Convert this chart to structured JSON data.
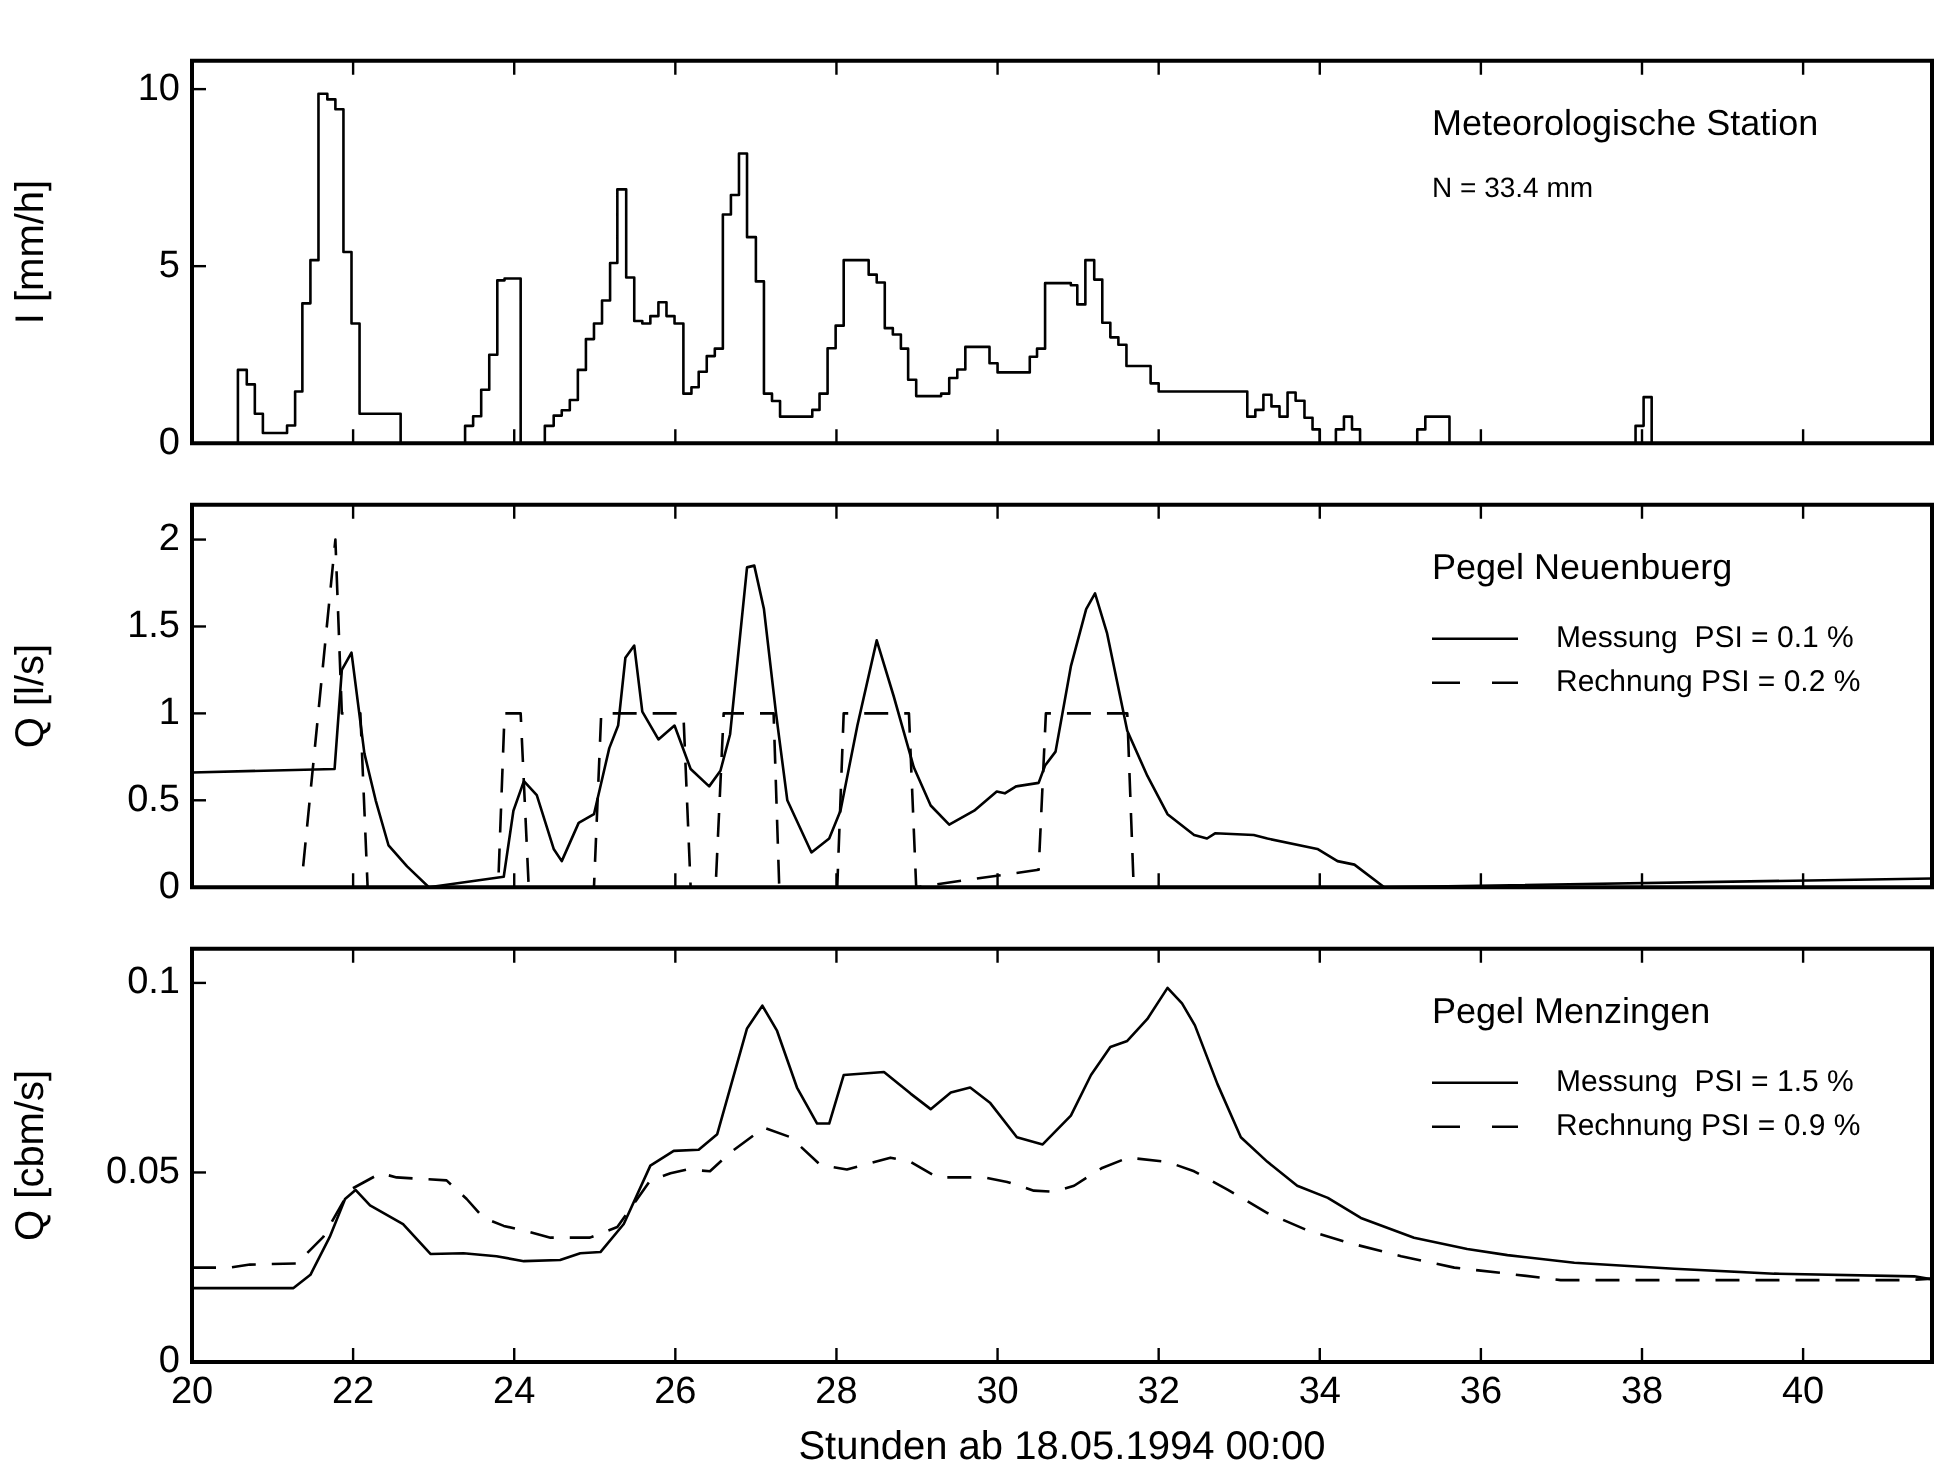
{
  "chart_data": [
    {
      "type": "step",
      "ylabel": "I [mm/h]",
      "annotations": [
        "Meteorologische Station",
        "N = 33.4 mm"
      ],
      "xlim": [
        20,
        41.6
      ],
      "xticks": [
        20,
        22,
        24,
        26,
        28,
        30,
        32,
        34,
        36,
        38,
        40
      ],
      "ylim": [
        0,
        10.8
      ],
      "yticks": [
        0,
        5,
        10
      ],
      "tick_labels": "y",
      "marker": "none",
      "series": [
        {
          "color": "#000000",
          "x": [
            20.57,
            20.57,
            20.68,
            20.78,
            20.88,
            21.18,
            21.28,
            21.37,
            21.47,
            21.57,
            21.68,
            21.78,
            21.88,
            21.98,
            22.08,
            22.59,
            23.39,
            23.49,
            23.59,
            23.69,
            23.79,
            23.88,
            24.08,
            24.38,
            24.49,
            24.59,
            24.69,
            24.79,
            24.89,
            24.99,
            25.09,
            25.19,
            25.28,
            25.39,
            25.49,
            25.59,
            25.69,
            25.79,
            25.89,
            25.99,
            26.1,
            26.2,
            26.29,
            26.39,
            26.49,
            26.59,
            26.69,
            26.79,
            26.89,
            27.0,
            27.1,
            27.2,
            27.3,
            27.7,
            27.79,
            27.89,
            27.99,
            28.09,
            28.4,
            28.5,
            28.6,
            28.7,
            28.8,
            28.89,
            28.99,
            29.3,
            29.4,
            29.5,
            29.6,
            29.9,
            30.0,
            30.4,
            30.49,
            30.59,
            30.91,
            30.99,
            31.09,
            31.2,
            31.3,
            31.4,
            31.5,
            31.6,
            31.9,
            32.0,
            33.1,
            33.2,
            33.3,
            33.4,
            33.5,
            33.6,
            33.7,
            33.81,
            33.91,
            34.0,
            34.2,
            34.3,
            34.4,
            34.5,
            35.21,
            35.31,
            35.61,
            37.92,
            38.02,
            38.12
          ],
          "values": [
            0,
            2.07,
            1.66,
            0.83,
            0.29,
            0.5,
            1.46,
            3.95,
            5.17,
            9.87,
            9.71,
            9.43,
            5.4,
            3.38,
            0.83,
            0,
            0.49,
            0.76,
            1.51,
            2.5,
            4.6,
            4.65,
            0,
            0.49,
            0.78,
            0.93,
            1.22,
            2.07,
            2.94,
            3.38,
            4.03,
            5.09,
            7.17,
            4.68,
            3.45,
            3.38,
            3.59,
            3.98,
            3.59,
            3.38,
            1.4,
            1.58,
            2.02,
            2.46,
            2.67,
            6.46,
            7.01,
            8.18,
            5.82,
            4.57,
            1.4,
            1.19,
            0.75,
            0.94,
            1.4,
            2.68,
            3.32,
            5.17,
            4.76,
            4.54,
            3.25,
            3.07,
            2.67,
            1.79,
            1.33,
            1.4,
            1.84,
            2.08,
            2.72,
            2.26,
            2.0,
            2.44,
            2.67,
            4.52,
            4.46,
            3.92,
            5.17,
            4.62,
            3.4,
            2.99,
            2.78,
            2.18,
            1.69,
            1.46,
            0.75,
            0.94,
            1.37,
            1.04,
            0.75,
            1.43,
            1.2,
            0.72,
            0.39,
            0,
            0.39,
            0.75,
            0.39,
            0,
            0.39,
            0.75,
            0,
            0.49,
            1.3,
            0
          ]
        }
      ]
    },
    {
      "type": "line",
      "ylabel": "Q [l/s]",
      "legend_title": "Pegel Neuenbuerg",
      "legend": "top right",
      "xlim": [
        20,
        41.6
      ],
      "xticks": [
        20,
        22,
        24,
        26,
        28,
        30,
        32,
        34,
        36,
        38,
        40
      ],
      "ylim": [
        0,
        2.2
      ],
      "yticks": [
        0,
        0.5,
        1,
        1.5,
        2
      ],
      "tick_labels": "y",
      "marker": "none",
      "series": [
        {
          "name": "Messung  PSI = 0.1 %",
          "color": "#000000",
          "line_style": "solid",
          "x": [
            20.0,
            21.77,
            21.86,
            21.98,
            22.14,
            22.28,
            22.44,
            22.67,
            22.94,
            23.87,
            23.99,
            24.12,
            24.28,
            24.49,
            24.59,
            24.8,
            24.99,
            25.18,
            25.29,
            25.38,
            25.49,
            25.59,
            25.79,
            25.99,
            26.19,
            26.42,
            26.56,
            26.68,
            26.89,
            26.98,
            27.1,
            27.25,
            27.39,
            27.69,
            27.91,
            28.05,
            28.26,
            28.5,
            28.71,
            28.96,
            29.17,
            29.4,
            29.71,
            29.99,
            30.09,
            30.23,
            30.51,
            30.59,
            30.72,
            30.91,
            31.1,
            31.21,
            31.36,
            31.61,
            31.86,
            32.11,
            32.44,
            32.6,
            32.7,
            33.18,
            33.35,
            33.97,
            34.22,
            34.43,
            34.8,
            41.6
          ],
          "values": [
            0.66,
            0.68,
            1.25,
            1.35,
            0.77,
            0.5,
            0.24,
            0.12,
            0,
            0.06,
            0.44,
            0.61,
            0.53,
            0.22,
            0.15,
            0.37,
            0.42,
            0.8,
            0.93,
            1.32,
            1.39,
            1.01,
            0.85,
            0.93,
            0.68,
            0.58,
            0.67,
            0.88,
            1.84,
            1.85,
            1.6,
            1.0,
            0.5,
            0.2,
            0.28,
            0.44,
            0.93,
            1.42,
            1.1,
            0.69,
            0.47,
            0.36,
            0.44,
            0.55,
            0.54,
            0.58,
            0.6,
            0.7,
            0.78,
            1.27,
            1.6,
            1.69,
            1.46,
            0.9,
            0.64,
            0.42,
            0.3,
            0.28,
            0.31,
            0.3,
            0.28,
            0.22,
            0.15,
            0.13,
            0,
            0.05
          ]
        },
        {
          "name": "Rechnung PSI = 0.2 %",
          "color": "#000000",
          "line_style": "dashed",
          "x": [
            21.38,
            21.78,
            21.86,
            22.09,
            22.18,
            23.8,
            23.88,
            24.08,
            24.18,
            24.99,
            25.08,
            26.1,
            26.19,
            26.5,
            26.6,
            27.22,
            27.29,
            28.01,
            28.09,
            28.9,
            28.99,
            30.51,
            30.6,
            31.61,
            31.69
          ],
          "values": [
            0.12,
            2.0,
            1.0,
            1.0,
            0,
            0,
            1.0,
            1.0,
            0,
            0,
            1.0,
            1.0,
            0,
            0,
            1.0,
            1.0,
            0,
            0,
            1.0,
            1.0,
            0,
            0.1,
            1.0,
            1.0,
            0
          ]
        }
      ]
    },
    {
      "type": "line",
      "xlabel": "Stunden ab 18.05.1994 00:00",
      "ylabel": "Q [cbm/s]",
      "legend_title": "Pegel Menzingen",
      "legend": "top right",
      "xlim": [
        20,
        41.6
      ],
      "xticks": [
        20,
        22,
        24,
        26,
        28,
        30,
        32,
        34,
        36,
        38,
        40
      ],
      "ylim": [
        0,
        0.109
      ],
      "yticks": [
        0,
        0.05,
        0.1
      ],
      "marker": "none",
      "series": [
        {
          "name": "Messung  PSI = 1.5 %",
          "color": "#000000",
          "line_style": "solid",
          "x": [
            20.0,
            21.26,
            21.47,
            21.71,
            21.9,
            22.03,
            22.21,
            22.62,
            22.96,
            23.37,
            23.78,
            24.12,
            24.57,
            24.82,
            25.07,
            25.36,
            25.69,
            25.98,
            26.29,
            26.52,
            26.89,
            27.08,
            27.26,
            27.51,
            27.76,
            27.91,
            28.09,
            28.59,
            28.92,
            29.17,
            29.42,
            29.66,
            29.91,
            30.24,
            30.56,
            30.91,
            31.16,
            31.4,
            31.61,
            31.86,
            32.11,
            32.29,
            32.45,
            32.73,
            33.02,
            33.35,
            33.72,
            34.1,
            34.51,
            35.17,
            35.83,
            36.33,
            37.16,
            38.4,
            39.64,
            41.38,
            41.6
          ],
          "values": [
            0.0195,
            0.0195,
            0.023,
            0.033,
            0.043,
            0.0454,
            0.0413,
            0.0364,
            0.0285,
            0.0287,
            0.0279,
            0.0266,
            0.0269,
            0.0287,
            0.029,
            0.0364,
            0.0518,
            0.0557,
            0.056,
            0.0601,
            0.088,
            0.094,
            0.0875,
            0.0724,
            0.0629,
            0.0629,
            0.0757,
            0.0765,
            0.0708,
            0.0667,
            0.0711,
            0.0724,
            0.0683,
            0.0593,
            0.0574,
            0.065,
            0.0757,
            0.0831,
            0.0847,
            0.0905,
            0.0987,
            0.0946,
            0.0888,
            0.0733,
            0.0593,
            0.0528,
            0.0465,
            0.0433,
            0.038,
            0.0328,
            0.0298,
            0.0282,
            0.0262,
            0.0246,
            0.0233,
            0.0226,
            0.0218
          ]
        },
        {
          "name": "Rechnung PSI = 0.9 %",
          "color": "#000000",
          "line_style": "dashed",
          "x": [
            20.0,
            20.47,
            20.72,
            21.3,
            21.63,
            21.96,
            22.34,
            22.54,
            23.16,
            23.41,
            23.62,
            23.87,
            24.12,
            24.45,
            24.94,
            25.28,
            25.69,
            25.94,
            26.15,
            26.43,
            26.68,
            27.1,
            27.43,
            27.8,
            28.13,
            28.67,
            28.92,
            29.25,
            29.83,
            30.12,
            30.45,
            30.7,
            30.95,
            31.29,
            31.62,
            32.11,
            32.44,
            32.86,
            33.35,
            33.85,
            34.35,
            35.01,
            35.67,
            36.33,
            36.99,
            38.81,
            41.3,
            41.6
          ],
          "values": [
            0.0249,
            0.0249,
            0.0257,
            0.026,
            0.033,
            0.0454,
            0.0498,
            0.0487,
            0.0479,
            0.043,
            0.038,
            0.0359,
            0.0347,
            0.0328,
            0.0328,
            0.0356,
            0.0479,
            0.0498,
            0.0508,
            0.0503,
            0.0552,
            0.0618,
            0.0593,
            0.052,
            0.0508,
            0.0539,
            0.0528,
            0.0487,
            0.0487,
            0.0475,
            0.0452,
            0.0449,
            0.0465,
            0.0511,
            0.0539,
            0.0528,
            0.0503,
            0.0454,
            0.0393,
            0.0347,
            0.0315,
            0.0279,
            0.0249,
            0.0233,
            0.0216,
            0.0216,
            0.0216,
            0.022
          ]
        }
      ]
    }
  ]
}
